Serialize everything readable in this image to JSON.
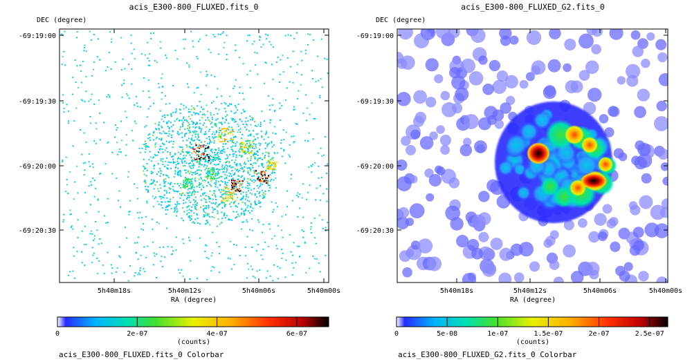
{
  "chart_data": [
    {
      "type": "heatmap",
      "title": "acis_E300-800_FLUXED.fits_0",
      "xlabel": "RA (degree)",
      "ylabel": "DEC (degree)",
      "x_ticks": [
        "5h40m18s",
        "5h40m12s",
        "5h40m06s",
        "5h40m00s"
      ],
      "y_ticks": [
        "-69:19:00",
        "-69:19:30",
        "-69:20:00",
        "-69:20:30"
      ],
      "colorbar": {
        "label": "(counts)",
        "title": "acis_E300-800_FLUXED.fits_0 Colorbar",
        "range": [
          0,
          6.8e-07
        ],
        "ticks": [
          {
            "value": 0,
            "label": "0"
          },
          {
            "value": 2e-07,
            "label": "2e-07"
          },
          {
            "value": 4e-07,
            "label": "4e-07"
          },
          {
            "value": 6e-07,
            "label": "6e-07"
          }
        ]
      },
      "colormap": [
        "#ffffff",
        "#3030ff",
        "#00c8ff",
        "#00e08c",
        "#a0e000",
        "#f0e800",
        "#ff9000",
        "#ff2000",
        "#a00000",
        "#000000"
      ]
    },
    {
      "type": "heatmap",
      "title": "acis_E300-800_FLUXED_G2.fits_0",
      "xlabel": "RA (degree)",
      "ylabel": "DEC (degree)",
      "x_ticks": [
        "5h40m18s",
        "5h40m12s",
        "5h40m06s",
        "5h40m00s"
      ],
      "y_ticks": [
        "-69:19:00",
        "-69:19:30",
        "-69:20:00",
        "-69:20:30"
      ],
      "colorbar": {
        "label": "(counts)",
        "title": "acis_E300-800_FLUXED_G2.fits_0 Colorbar",
        "range": [
          0,
          2.68e-07
        ],
        "ticks": [
          {
            "value": 0,
            "label": "0"
          },
          {
            "value": 5e-08,
            "label": "5e-08"
          },
          {
            "value": 1e-07,
            "label": "1e-07"
          },
          {
            "value": 1.5e-07,
            "label": "1.5e-07"
          },
          {
            "value": 2e-07,
            "label": "2e-07"
          },
          {
            "value": 2.5e-07,
            "label": "2.5e-07"
          }
        ]
      },
      "colormap": [
        "#ffffff",
        "#3030ff",
        "#00c8ff",
        "#00e08c",
        "#a0e000",
        "#f0e800",
        "#ff9000",
        "#ff2000",
        "#a00000",
        "#000000"
      ]
    }
  ]
}
